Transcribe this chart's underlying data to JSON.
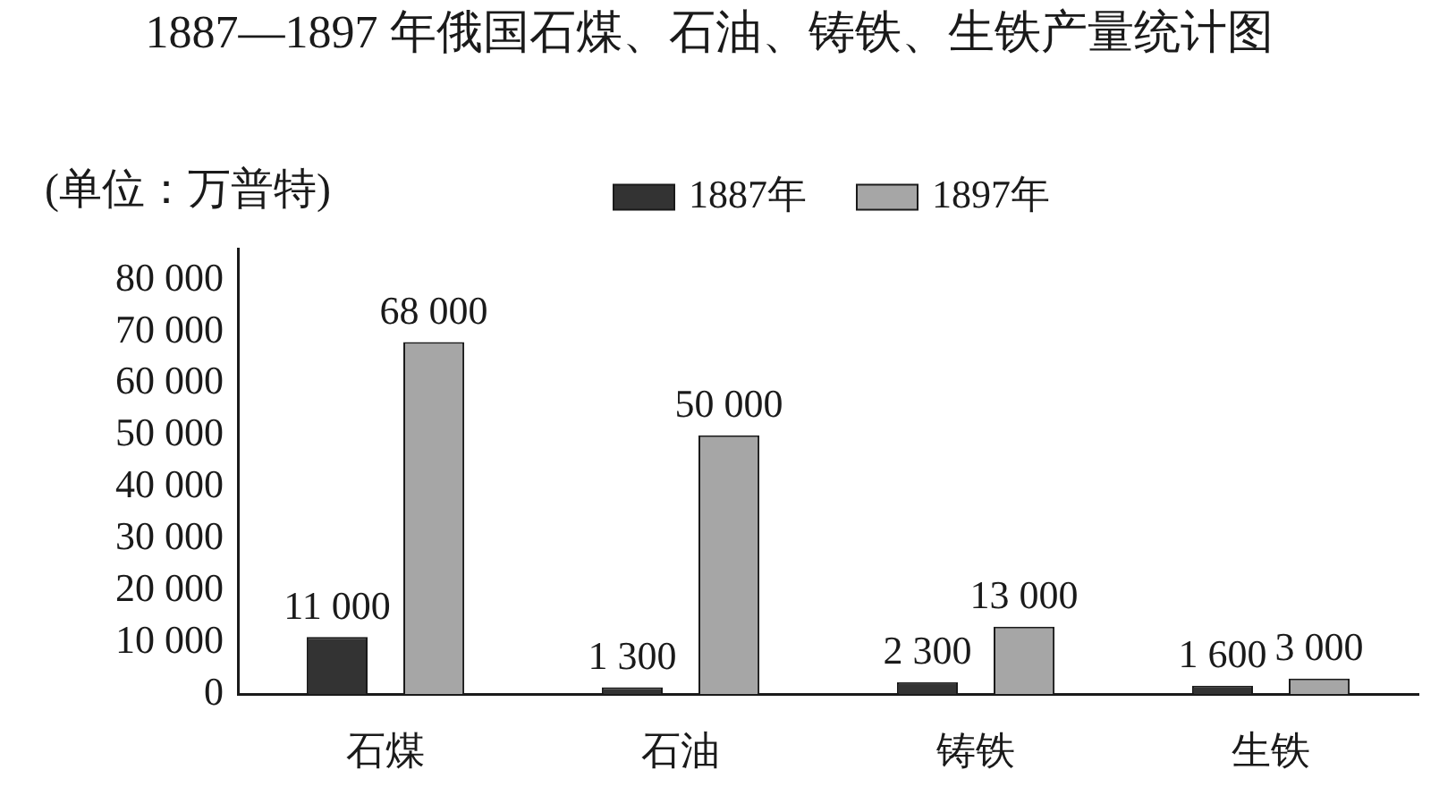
{
  "chart_data": {
    "type": "bar",
    "title": "1887—1897 年俄国石煤、石油、铸铁、生铁产量统计图",
    "ylabel": "(单位：万普特)",
    "categories": [
      "石煤",
      "石油",
      "铸铁",
      "生铁"
    ],
    "series": [
      {
        "name": "1887年",
        "color": "#333333",
        "values": [
          11000,
          1300,
          2300,
          1600
        ],
        "value_labels": [
          "11 000",
          "1 300",
          "2 300",
          "1 600"
        ]
      },
      {
        "name": "1897年",
        "color": "#a6a6a6",
        "values": [
          68000,
          50000,
          13000,
          3000
        ],
        "value_labels": [
          "68 000",
          "50 000",
          "13 000",
          "3 000"
        ]
      }
    ],
    "ylim": [
      0,
      86000
    ],
    "yticks": [
      0,
      {
        "value": 10000,
        "label": "10 000"
      },
      {
        "value": 20000,
        "label": "20 000"
      },
      {
        "value": 30000,
        "label": "30 000"
      },
      {
        "value": 40000,
        "label": "40 000"
      },
      {
        "value": 50000,
        "label": "50 000"
      },
      {
        "value": 60000,
        "label": "60 000"
      },
      {
        "value": 70000,
        "label": "70 000"
      },
      {
        "value": 80000,
        "label": "80 000"
      }
    ],
    "grid": false,
    "legend": "top"
  }
}
